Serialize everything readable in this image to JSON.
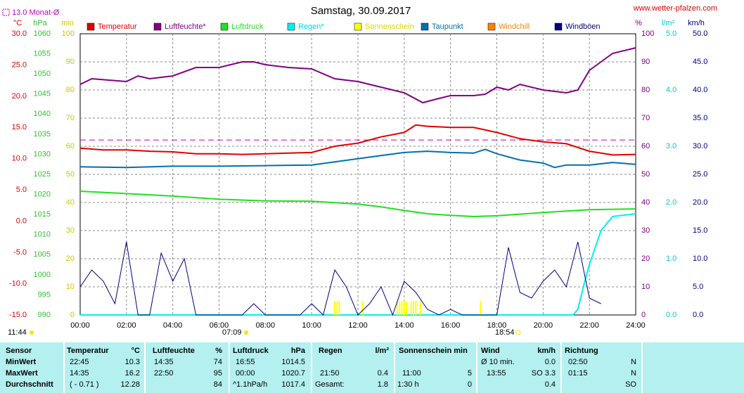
{
  "chart_data": {
    "type": "line",
    "title": "Samstag, 30.09.2017",
    "source": "www.wetter-pfalzen.com",
    "monthly_avg": {
      "label": "13.0 Monat-Ø",
      "value": 13.0,
      "axis": "temp",
      "color": "#c000c0"
    },
    "sun": {
      "duration": "11:44",
      "sunrise": "07:09",
      "sunset": "18:54"
    },
    "xlim": [
      0,
      24
    ],
    "xticks": [
      {
        "value": 0,
        "label": "00:00"
      },
      {
        "value": 2,
        "label": "02:00"
      },
      {
        "value": 4,
        "label": "04:00"
      },
      {
        "value": 6,
        "label": "06:00"
      },
      {
        "value": 8,
        "label": "08:00"
      },
      {
        "value": 10,
        "label": "10:00"
      },
      {
        "value": 12,
        "label": "12:00"
      },
      {
        "value": 14,
        "label": "14:00"
      },
      {
        "value": 16,
        "label": "16:00"
      },
      {
        "value": 18,
        "label": "18:00"
      },
      {
        "value": 20,
        "label": "20:00"
      },
      {
        "value": 22,
        "label": "22:00"
      },
      {
        "value": 24,
        "label": "24:00"
      }
    ],
    "grid": true,
    "axes": {
      "temp": {
        "label": "°C",
        "color": "#e00000",
        "lim": [
          -15,
          30
        ],
        "ticks": [
          {
            "value": 30,
            "label": "30.0"
          },
          {
            "value": 25,
            "label": "25.0"
          },
          {
            "value": 20,
            "label": "20.0"
          },
          {
            "value": 15,
            "label": "15.0"
          },
          {
            "value": 10,
            "label": "10.0"
          },
          {
            "value": 5,
            "label": "5.0"
          },
          {
            "value": 0,
            "label": "0.0"
          },
          {
            "value": -5,
            "label": "-5.0"
          },
          {
            "value": -10,
            "label": "-10.0"
          },
          {
            "value": -15,
            "label": "-15.0"
          }
        ]
      },
      "hpa": {
        "label": "hPa",
        "color": "#30c030",
        "lim": [
          990,
          1060
        ],
        "ticks": [
          1060,
          1055,
          1050,
          1045,
          1040,
          1035,
          1030,
          1025,
          1020,
          1015,
          1010,
          1005,
          1000,
          995,
          990
        ]
      },
      "min": {
        "label": "min",
        "color": "#c8c800",
        "lim": [
          0,
          100
        ],
        "ticks": [
          100,
          90,
          80,
          70,
          60,
          50,
          40,
          30,
          20,
          10,
          0
        ]
      },
      "pct": {
        "label": "%",
        "color": "#800080",
        "lim": [
          0,
          100
        ],
        "ticks": [
          100,
          90,
          80,
          70,
          60,
          50,
          40,
          30,
          20,
          10,
          0
        ]
      },
      "rain": {
        "label": "l/m²",
        "color": "#00c8d0",
        "lim": [
          0,
          5
        ],
        "ticks": [
          {
            "value": 5,
            "label": "5.0"
          },
          {
            "value": 4,
            "label": "4.0"
          },
          {
            "value": 3,
            "label": "3.0"
          },
          {
            "value": 2,
            "label": "2.0"
          },
          {
            "value": 1,
            "label": "1.0"
          },
          {
            "value": 0,
            "label": "0.0"
          }
        ]
      },
      "wind": {
        "label": "km/h",
        "color": "#000080",
        "lim": [
          0,
          50
        ],
        "ticks": [
          {
            "value": 50,
            "label": "50.0"
          },
          {
            "value": 45,
            "label": "45.0"
          },
          {
            "value": 40,
            "label": "40.0"
          },
          {
            "value": 35,
            "label": "35.0"
          },
          {
            "value": 30,
            "label": "30.0"
          },
          {
            "value": 25,
            "label": "25.0"
          },
          {
            "value": 20,
            "label": "20.0"
          },
          {
            "value": 15,
            "label": "15.0"
          },
          {
            "value": 10,
            "label": "10.0"
          },
          {
            "value": 5,
            "label": "5.0"
          },
          {
            "value": 0,
            "label": "0.0"
          }
        ]
      }
    },
    "series": [
      {
        "name": "Temperatur",
        "color": "#e00000",
        "axis": "temp",
        "x": [
          0,
          1,
          2,
          3,
          4,
          5,
          6,
          7,
          8,
          9,
          10,
          11,
          12,
          13,
          14,
          14.5,
          15,
          16,
          17,
          18,
          19,
          20,
          21,
          22,
          23,
          24
        ],
        "values": [
          11.7,
          11.4,
          11.4,
          11.2,
          11.1,
          10.8,
          10.8,
          10.7,
          10.8,
          10.9,
          11.0,
          12.0,
          12.5,
          13.5,
          14.2,
          15.4,
          15.2,
          15.0,
          15.0,
          14.2,
          13.2,
          12.7,
          12.4,
          11.2,
          10.6,
          10.7
        ]
      },
      {
        "name": "Luftfeuchte*",
        "color": "#800080",
        "axis": "pct",
        "x": [
          0,
          0.5,
          2,
          2.5,
          3,
          4,
          5,
          6,
          7,
          7.5,
          8,
          9,
          10,
          11,
          12,
          13,
          14,
          14.8,
          15.5,
          16,
          17,
          17.5,
          18,
          18.5,
          19,
          20,
          21,
          21.5,
          22,
          22.5,
          23,
          24
        ],
        "values": [
          82,
          84,
          83,
          85,
          84,
          85,
          88,
          88,
          90,
          90,
          89,
          88,
          87.5,
          84,
          83,
          81,
          79,
          75.5,
          77,
          78,
          78,
          78.5,
          81,
          80,
          82,
          80,
          79,
          80,
          87,
          90,
          93,
          95
        ]
      },
      {
        "name": "Luftdruck",
        "color": "#20e020",
        "axis": "hpa",
        "x": [
          0,
          2,
          4,
          6,
          8,
          10,
          12,
          13,
          14,
          15,
          16,
          17,
          18,
          20,
          22,
          24
        ],
        "values": [
          1020.8,
          1020.2,
          1019.6,
          1018.8,
          1018.4,
          1018.3,
          1017.6,
          1016.9,
          1016.0,
          1015.2,
          1014.8,
          1014.5,
          1014.7,
          1015.5,
          1016.2,
          1016.4
        ]
      },
      {
        "name": "Regen*",
        "color": "#00f0f0",
        "axis": "rain",
        "x": [
          0,
          21.3,
          21.5,
          21.8,
          22,
          22.5,
          23,
          24
        ],
        "values": [
          0,
          0,
          0.1,
          0.6,
          0.9,
          1.5,
          1.75,
          1.8
        ]
      },
      {
        "name": "Sonnenschein",
        "color": "#ffff00",
        "axis": "min",
        "kind": "bars",
        "x": [
          11.0,
          11.1,
          11.2,
          12.2,
          13.7,
          13.8,
          13.9,
          14.0,
          14.1,
          14.3,
          14.4,
          14.5,
          14.7,
          17.3
        ],
        "values": [
          5,
          5,
          5,
          5,
          5,
          5,
          5,
          5,
          5,
          5,
          5,
          5,
          5,
          5
        ]
      },
      {
        "name": "Taupunkt",
        "color": "#0070b0",
        "axis": "temp",
        "x": [
          0,
          2,
          4,
          6,
          8,
          10,
          11,
          12,
          13,
          14,
          15,
          16,
          17,
          17.5,
          18,
          19,
          20,
          20.5,
          21,
          22,
          23,
          24
        ],
        "values": [
          8.7,
          8.6,
          8.8,
          8.8,
          8.9,
          9.0,
          9.5,
          10.0,
          10.5,
          11.0,
          11.2,
          11.0,
          10.9,
          11.5,
          10.8,
          9.8,
          9.3,
          8.6,
          9.0,
          9.0,
          9.4,
          9.1
        ]
      },
      {
        "name": "Windchill",
        "color": "#ff8000",
        "axis": "temp"
      },
      {
        "name": "Windböen",
        "color": "#000080",
        "axis": "wind",
        "x": [
          0,
          0.5,
          1,
          1.5,
          2,
          2.5,
          3,
          3.5,
          4,
          4.5,
          5,
          5.5,
          6,
          6.5,
          7,
          7.5,
          8,
          8.5,
          9,
          9.5,
          10,
          10.5,
          11,
          11.5,
          12,
          12.5,
          13,
          13.5,
          14,
          14.5,
          15,
          15.5,
          16,
          16.5,
          17,
          17.5,
          18,
          18.5,
          19,
          19.5,
          20,
          20.5,
          21,
          21.5,
          22,
          22.5,
          23,
          23.5,
          24
        ],
        "values": [
          5,
          8,
          6,
          2,
          13,
          0,
          0,
          11,
          6,
          10,
          0,
          0,
          0,
          0,
          0,
          2,
          0,
          0,
          0,
          0,
          2,
          0,
          8,
          5,
          0,
          2,
          5,
          0,
          6,
          4,
          1,
          0,
          1,
          0,
          0,
          0,
          0,
          12,
          4,
          3,
          6,
          8,
          5,
          13,
          3,
          2,
          null,
          null,
          null
        ]
      }
    ]
  },
  "table": {
    "header": [
      "Sensor",
      "Temperatur",
      "°C",
      "Luftfeuchte",
      "%",
      "Luftdruck",
      "hPa",
      "Regen",
      "l/m²",
      "Sonnenschein min",
      "Wind",
      "km/h",
      "Richtung"
    ],
    "rows": [
      {
        "label": "MinWert",
        "cells": [
          "22:45",
          "10.3",
          "14:35",
          "74",
          "16:55",
          "1014.5",
          "Ø 10 min.",
          "0.0",
          "02:50",
          "N"
        ]
      },
      {
        "label": "MaxWert",
        "cells": [
          "14:35",
          "16.2",
          "22:50",
          "95",
          "00:00",
          "1020.7",
          "21:50",
          "0.4",
          "11:00",
          "5",
          "13:55",
          "SO 3.3",
          "01:15",
          "N"
        ]
      },
      {
        "label": "Durchschnitt",
        "cells": [
          "( - 0.71 )",
          "12.28",
          "84",
          "^1.1hPa/h",
          "1017.4",
          "Gesamt:",
          "1.8",
          "1:30 h",
          "0",
          "0.4",
          "SO"
        ]
      }
    ]
  }
}
